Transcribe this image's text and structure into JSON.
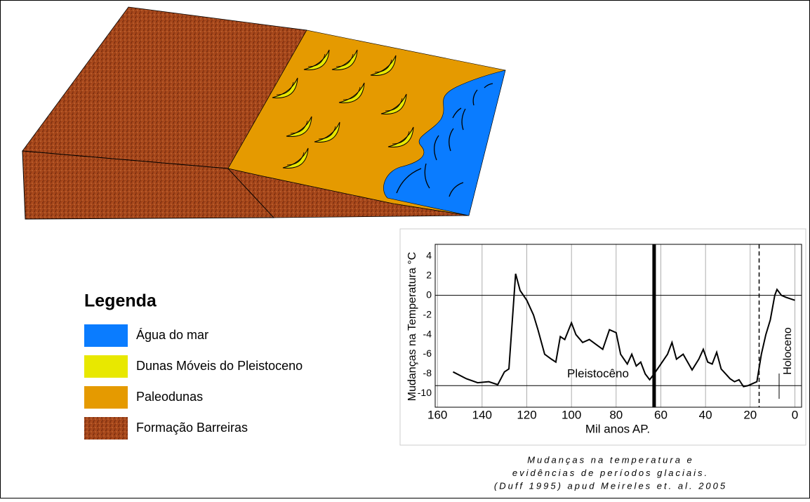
{
  "legend": {
    "title": "Legenda",
    "items": [
      {
        "label": "Água do mar",
        "color": "#0a7cff"
      },
      {
        "label": "Dunas Móveis do Pleistoceno",
        "color": "#e8e800"
      },
      {
        "label": "Paleodunas",
        "color": "#e59a00"
      },
      {
        "label": "Formação Barreiras",
        "color": "#a5461a"
      }
    ]
  },
  "chart_data": {
    "type": "line",
    "x_label": "Mil anos AP.",
    "y_label": "Mudanças na Temperatura °C",
    "x": [
      153,
      147,
      142,
      137,
      133,
      130,
      128,
      125,
      123,
      120,
      117,
      115,
      112,
      109,
      107,
      105,
      103,
      100,
      98,
      95,
      92,
      89,
      86,
      83,
      80,
      78,
      75,
      73,
      71,
      69,
      67,
      65,
      63,
      60,
      57,
      55,
      53,
      50,
      48,
      46,
      43,
      41,
      39,
      37,
      35,
      33,
      31,
      29,
      27,
      25,
      23,
      21,
      19,
      17,
      15,
      13,
      11,
      9,
      8,
      6,
      4,
      0
    ],
    "values": [
      -7.8,
      -8.5,
      -8.9,
      -8.8,
      -9.1,
      -7.8,
      -7.5,
      2.2,
      0.5,
      -0.5,
      -2,
      -3.5,
      -6,
      -6.5,
      -6.8,
      -4.2,
      -4.5,
      -2.8,
      -4,
      -4.8,
      -4.5,
      -5,
      -5.5,
      -3.5,
      -3.8,
      -6,
      -7,
      -6,
      -7.2,
      -6.8,
      -8,
      -8.6,
      -8,
      -7,
      -6,
      -4.8,
      -6.5,
      -6,
      -6.8,
      -7.6,
      -6.5,
      -5.5,
      -6.8,
      -7,
      -5.8,
      -7.5,
      -8,
      -8.5,
      -8.8,
      -8.6,
      -9.3,
      -9.2,
      -9,
      -8.8,
      -6,
      -4,
      -2.5,
      0,
      0.6,
      0,
      -0.2,
      -0.5
    ],
    "color": "#000000",
    "xlim": [
      161,
      -3
    ],
    "xticks": [
      160,
      140,
      120,
      100,
      80,
      60,
      40,
      20,
      0
    ],
    "ylim": [
      -11.4,
      5.2
    ],
    "yticks": [
      4,
      2,
      0,
      -2,
      -4,
      -6,
      -8,
      -10
    ],
    "grid": "x",
    "hlines": [
      0,
      -9.2
    ],
    "vlines": [
      {
        "value": 63,
        "style": "thick"
      },
      {
        "value": 16,
        "style": "dashed"
      }
    ],
    "annotations": [
      "Pleistocêno",
      "Holoceno"
    ]
  },
  "caption": [
    "Mudanças na temperatura e",
    "evidências de períodos glaciais.",
    "(Duff 1995) apud Meireles et. al. 2005"
  ]
}
